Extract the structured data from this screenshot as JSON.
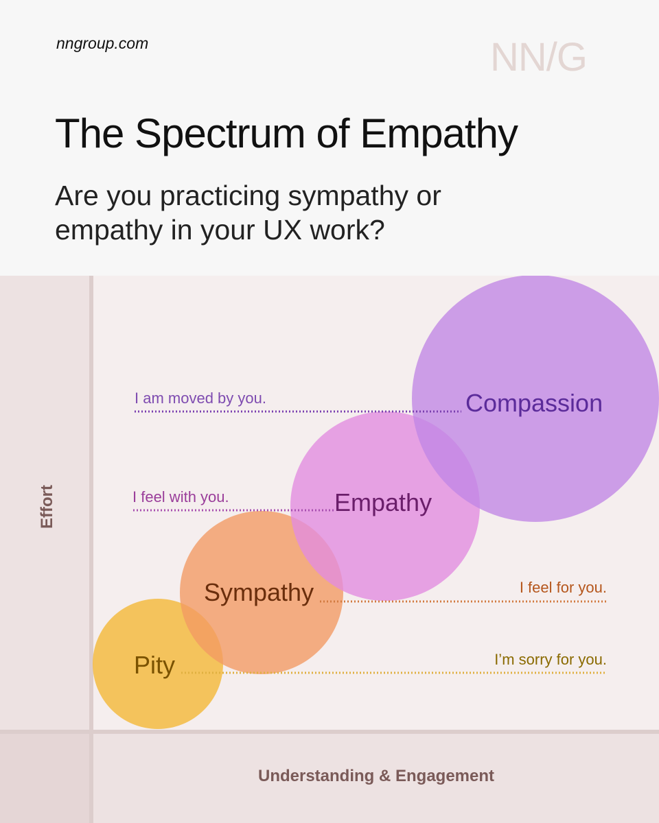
{
  "header": {
    "site_url": "nngroup.com",
    "logo": "NN/G",
    "title": "The Spectrum of Empathy",
    "subtitle": "Are you practicing sympathy or empathy in your UX work?"
  },
  "axes": {
    "y_label": "Effort",
    "x_label": "Understanding & Engagement"
  },
  "levels": [
    {
      "name": "Pity",
      "phrase": "I’m sorry for you.",
      "color": "#f4b93c",
      "label_color": "#7a5200",
      "phrase_color": "#8a6a00",
      "line_color": "#e0b040"
    },
    {
      "name": "Sympathy",
      "phrase": "I feel for you.",
      "color": "#f29a63",
      "label_color": "#6a2e0c",
      "phrase_color": "#b5561c",
      "line_color": "#d27a40"
    },
    {
      "name": "Empathy",
      "phrase": "I feel with you.",
      "color": "#e28ce0",
      "label_color": "#6a1e6a",
      "phrase_color": "#9a3d9a",
      "line_color": "#a84fb0"
    },
    {
      "name": "Compassion",
      "phrase": "I am moved by you.",
      "color": "#c086e6",
      "label_color": "#5b2b9a",
      "phrase_color": "#7e4bb0",
      "line_color": "#7a3fb0"
    }
  ],
  "colors": {
    "plot_background": "#f5eeee",
    "axis_band": "#ede2e2",
    "axis_corner": "#e5d6d6",
    "axis_line": "#dccdcc",
    "axis_text": "#7a5a58"
  }
}
